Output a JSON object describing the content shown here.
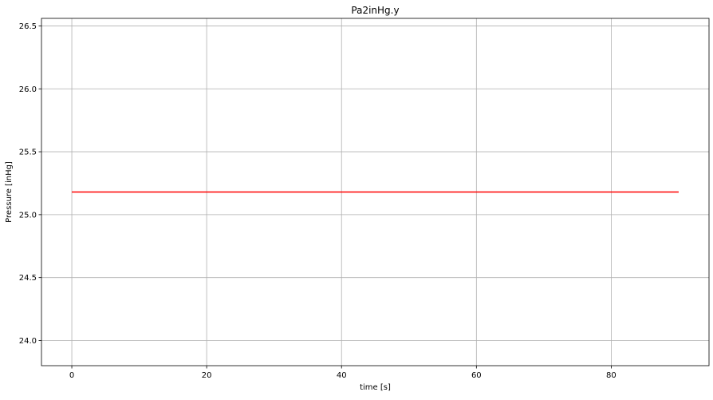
{
  "chart_data": {
    "type": "line",
    "title": "Pa2inHg.y",
    "xlabel": "time [s]",
    "ylabel": "Pressure [inHg]",
    "xlim": [
      -4.5,
      94.5
    ],
    "ylim": [
      23.8,
      26.56
    ],
    "xticks": [
      0,
      20,
      40,
      60,
      80
    ],
    "yticks": [
      24.0,
      24.5,
      25.0,
      25.5,
      26.0,
      26.5
    ],
    "xtick_labels": [
      "0",
      "20",
      "40",
      "60",
      "80"
    ],
    "ytick_labels": [
      "24.0",
      "24.5",
      "25.0",
      "25.5",
      "26.0",
      "26.5"
    ],
    "grid": true,
    "series": [
      {
        "color": "#ff0000",
        "x": [
          0,
          90
        ],
        "y": [
          25.18,
          25.18
        ]
      }
    ]
  }
}
